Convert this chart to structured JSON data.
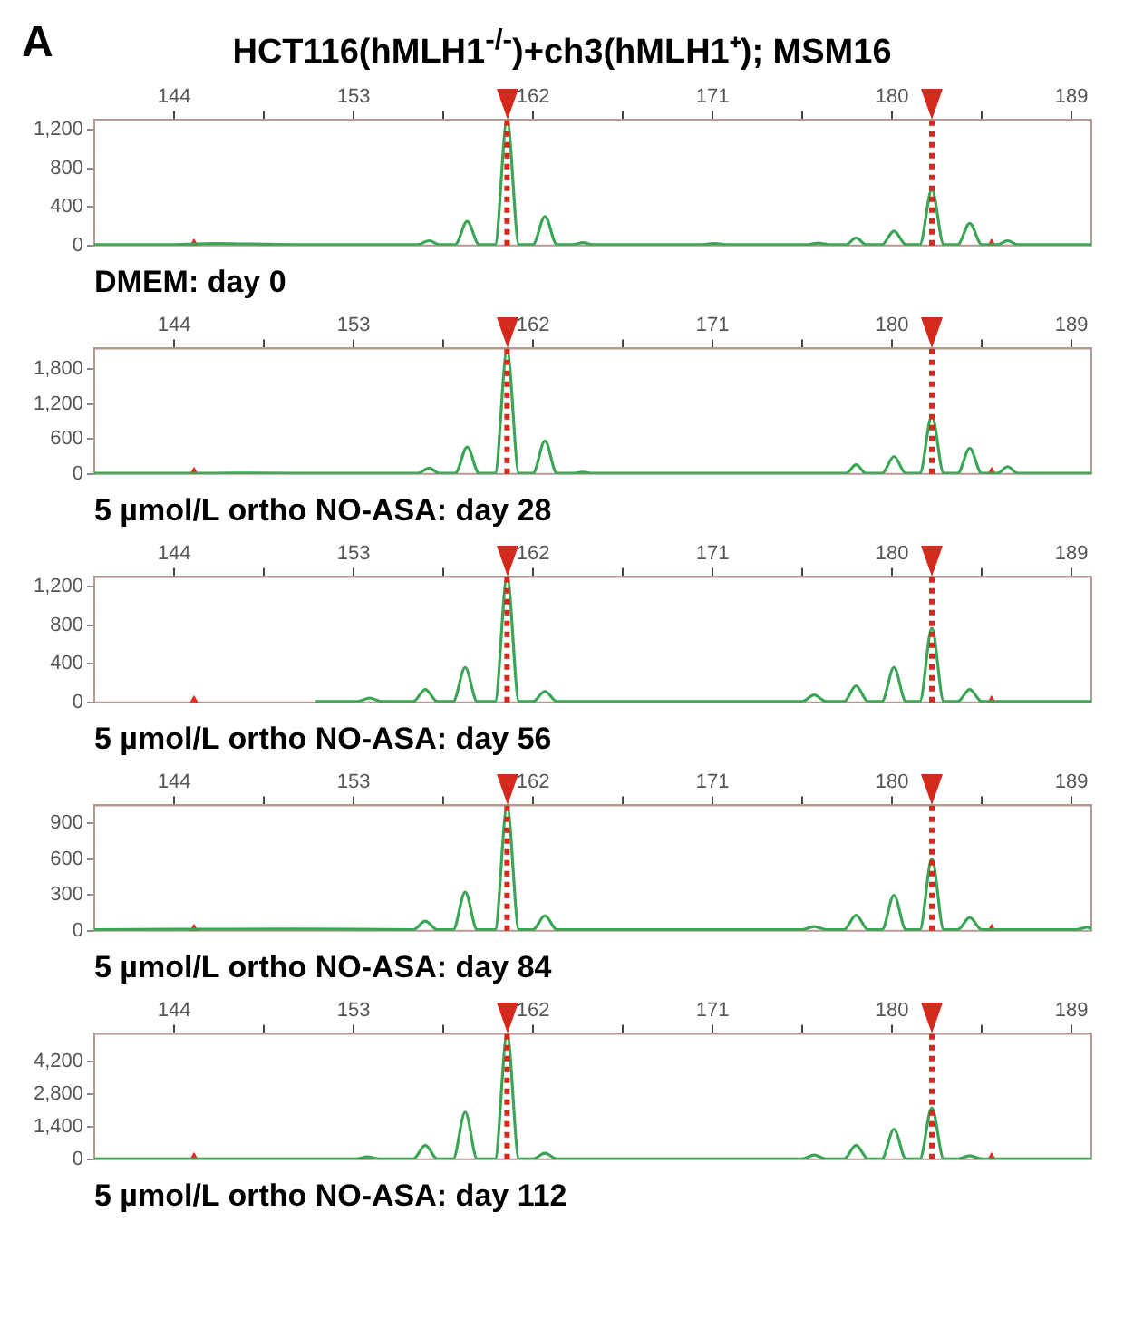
{
  "chart_data": [
    {
      "type": "line",
      "title": "HCT116(hMLH1$^{-/-}$)+ch3(hMLH1⁺); MSM16",
      "subtitle": "DMEM: day 0",
      "annotations": [
        "A"
      ],
      "xlim": [
        140,
        190
      ],
      "xticks": [
        144,
        {
          "value": 148.5,
          "label": null
        },
        153,
        {
          "value": 157.5,
          "label": null
        },
        162,
        {
          "value": 166.5,
          "label": null
        },
        171,
        {
          "value": 175.5,
          "label": null
        },
        180,
        {
          "value": 184.5,
          "label": null
        },
        189
      ],
      "ylim": [
        0,
        1300
      ],
      "yticks": [
        0,
        400,
        800,
        {
          "value": 1200,
          "label": "1,200"
        }
      ],
      "legend": false,
      "ref_lines": [
        {
          "axis": "x",
          "value": 160.7,
          "color": "#d42a1e",
          "line_style": "dotted"
        },
        {
          "axis": "x",
          "value": 182,
          "color": "#d42a1e",
          "line_style": "dotted"
        }
      ],
      "series": [
        {
          "type": "line",
          "color": "#3aa655",
          "marker": "none",
          "x": [
            140,
            144,
            146,
            148,
            150,
            154,
            156.2,
            156.8,
            157.3,
            158.1,
            158.7,
            159.3,
            160.1,
            160.7,
            161.3,
            162.0,
            162.6,
            163.2,
            164.0,
            164.5,
            165.0,
            170.5,
            171.1,
            171.7,
            175.8,
            176.3,
            176.8,
            177.7,
            178.2,
            178.7,
            179.5,
            180.1,
            180.7,
            181.4,
            182.0,
            182.6,
            183.3,
            183.9,
            184.5,
            185.3,
            185.8,
            186.3,
            190
          ],
          "values": [
            10,
            10,
            20,
            15,
            10,
            10,
            10,
            50,
            10,
            10,
            250,
            10,
            10,
            1300,
            10,
            10,
            300,
            10,
            10,
            30,
            10,
            10,
            20,
            10,
            10,
            25,
            10,
            10,
            80,
            10,
            10,
            150,
            10,
            10,
            580,
            10,
            10,
            230,
            10,
            10,
            50,
            10,
            10
          ]
        },
        {
          "type": "scatter",
          "color": "#e8291c",
          "marker": "triangle",
          "x": [
            145,
            185
          ],
          "values": [
            0,
            0
          ]
        }
      ]
    },
    {
      "type": "line",
      "subtitle": "5 µmol/L ortho NO-ASA: day 28",
      "xlim": [
        140,
        190
      ],
      "xticks": [
        144,
        {
          "value": 148.5,
          "label": null
        },
        153,
        {
          "value": 157.5,
          "label": null
        },
        162,
        {
          "value": 166.5,
          "label": null
        },
        171,
        {
          "value": 175.5,
          "label": null
        },
        180,
        {
          "value": 184.5,
          "label": null
        },
        189
      ],
      "ylim": [
        0,
        2150
      ],
      "yticks": [
        0,
        600,
        {
          "value": 1200,
          "label": "1,200"
        },
        {
          "value": 1800,
          "label": "1,800"
        }
      ],
      "legend": false,
      "ref_lines": [
        {
          "axis": "x",
          "value": 160.7,
          "color": "#d42a1e",
          "line_style": "dotted"
        },
        {
          "axis": "x",
          "value": 182,
          "color": "#d42a1e",
          "line_style": "dotted"
        }
      ],
      "series": [
        {
          "type": "line",
          "color": "#3aa655",
          "marker": "none",
          "x": [
            140,
            144,
            148,
            152,
            156.2,
            156.8,
            157.3,
            158.1,
            158.7,
            159.3,
            160.1,
            160.7,
            161.3,
            162.0,
            162.6,
            163.2,
            164.0,
            164.5,
            165.0,
            177.7,
            178.2,
            178.7,
            179.5,
            180.1,
            180.7,
            181.4,
            182.0,
            182.6,
            183.3,
            183.9,
            184.5,
            185.3,
            185.8,
            186.3,
            190
          ],
          "values": [
            10,
            10,
            15,
            10,
            10,
            100,
            10,
            10,
            460,
            10,
            10,
            2120,
            10,
            10,
            565,
            10,
            10,
            30,
            10,
            10,
            157,
            10,
            10,
            300,
            10,
            10,
            995,
            10,
            10,
            440,
            10,
            10,
            125,
            10,
            10
          ]
        },
        {
          "type": "scatter",
          "color": "#e8291c",
          "marker": "triangle",
          "x": [
            145,
            185
          ],
          "values": [
            0,
            0
          ]
        }
      ]
    },
    {
      "type": "line",
      "subtitle": "5 µmol/L ortho NO-ASA: day 56",
      "xlim": [
        140,
        190
      ],
      "xticks": [
        144,
        {
          "value": 148.5,
          "label": null
        },
        153,
        {
          "value": 157.5,
          "label": null
        },
        162,
        {
          "value": 166.5,
          "label": null
        },
        171,
        {
          "value": 175.5,
          "label": null
        },
        180,
        {
          "value": 184.5,
          "label": null
        },
        189
      ],
      "ylim": [
        0,
        1300
      ],
      "yticks": [
        0,
        400,
        800,
        {
          "value": 1200,
          "label": "1,200"
        }
      ],
      "legend": false,
      "ref_lines": [
        {
          "axis": "x",
          "value": 160.7,
          "color": "#d42a1e",
          "line_style": "dotted"
        },
        {
          "axis": "x",
          "value": 182,
          "color": "#d42a1e",
          "line_style": "dotted"
        }
      ],
      "series": [
        {
          "type": "line",
          "color": "#3aa655",
          "marker": "none",
          "x": [
            151.1,
            153.2,
            153.8,
            154.4,
            156.0,
            156.6,
            157.2,
            158.0,
            158.6,
            159.2,
            160.1,
            160.7,
            161.3,
            162.0,
            162.6,
            163.2,
            175.5,
            176.1,
            176.7,
            177.6,
            178.2,
            178.8,
            179.5,
            180.1,
            180.7,
            181.4,
            182.0,
            182.6,
            183.3,
            183.9,
            184.5,
            190
          ],
          "values": [
            10,
            10,
            45,
            10,
            10,
            133,
            10,
            10,
            362,
            10,
            10,
            1300,
            10,
            10,
            114,
            10,
            10,
            76,
            10,
            10,
            171,
            10,
            10,
            362,
            10,
            10,
            768,
            10,
            10,
            133,
            10,
            10
          ]
        },
        {
          "type": "scatter",
          "color": "#e8291c",
          "marker": "triangle",
          "x": [
            145,
            185
          ],
          "values": [
            0,
            0
          ]
        }
      ]
    },
    {
      "type": "line",
      "subtitle": "5 µmol/L ortho NO-ASA: day 84",
      "xlim": [
        140,
        190
      ],
      "xticks": [
        144,
        {
          "value": 148.5,
          "label": null
        },
        153,
        {
          "value": 157.5,
          "label": null
        },
        162,
        {
          "value": 166.5,
          "label": null
        },
        171,
        {
          "value": 175.5,
          "label": null
        },
        180,
        {
          "value": 184.5,
          "label": null
        },
        189
      ],
      "ylim": [
        0,
        1050
      ],
      "yticks": [
        0,
        300,
        600,
        900
      ],
      "legend": false,
      "ref_lines": [
        {
          "axis": "x",
          "value": 160.7,
          "color": "#d42a1e",
          "line_style": "dotted"
        },
        {
          "axis": "x",
          "value": 182,
          "color": "#d42a1e",
          "line_style": "dotted"
        }
      ],
      "series": [
        {
          "type": "line",
          "color": "#3aa655",
          "marker": "none",
          "x": [
            140,
            150,
            156.0,
            156.6,
            157.2,
            158.0,
            158.6,
            159.2,
            160.1,
            160.7,
            161.3,
            162.0,
            162.6,
            163.2,
            175.5,
            176.1,
            176.7,
            177.6,
            178.2,
            178.8,
            179.5,
            180.1,
            180.7,
            181.4,
            182.0,
            182.6,
            183.3,
            183.9,
            184.5,
            189.2,
            189.8,
            190
          ],
          "values": [
            10,
            15,
            10,
            81,
            10,
            10,
            324,
            10,
            10,
            1040,
            10,
            10,
            126,
            10,
            10,
            35,
            10,
            10,
            131,
            10,
            10,
            298,
            10,
            10,
            602,
            10,
            10,
            111,
            10,
            10,
            30,
            15
          ]
        },
        {
          "type": "scatter",
          "color": "#e8291c",
          "marker": "triangle",
          "x": [
            145,
            185
          ],
          "values": [
            0,
            0
          ]
        }
      ]
    },
    {
      "type": "line",
      "subtitle": "5 µmol/L ortho NO-ASA: day 112",
      "xlim": [
        140,
        190
      ],
      "xticks": [
        144,
        {
          "value": 148.5,
          "label": null
        },
        153,
        {
          "value": 157.5,
          "label": null
        },
        162,
        {
          "value": 166.5,
          "label": null
        },
        171,
        {
          "value": 175.5,
          "label": null
        },
        180,
        {
          "value": 184.5,
          "label": null
        },
        189
      ],
      "ylim": [
        0,
        5400
      ],
      "yticks": [
        0,
        {
          "value": 1400,
          "label": "1,400"
        },
        {
          "value": 2800,
          "label": "2,800"
        },
        {
          "value": 4200,
          "label": "4,200"
        }
      ],
      "legend": false,
      "ref_lines": [
        {
          "axis": "x",
          "value": 160.7,
          "color": "#d42a1e",
          "line_style": "dotted"
        },
        {
          "axis": "x",
          "value": 182,
          "color": "#d42a1e",
          "line_style": "dotted"
        }
      ],
      "series": [
        {
          "type": "line",
          "color": "#3aa655",
          "marker": "none",
          "x": [
            140,
            153.1,
            153.7,
            154.3,
            156.0,
            156.6,
            157.2,
            158.0,
            158.6,
            159.2,
            160.1,
            160.7,
            161.3,
            162.0,
            162.6,
            163.2,
            175.5,
            176.1,
            176.7,
            177.6,
            178.2,
            178.8,
            179.5,
            180.1,
            180.7,
            181.4,
            182.0,
            182.6,
            183.3,
            183.9,
            184.5,
            190
          ],
          "values": [
            20,
            20,
            105,
            20,
            20,
            600,
            20,
            20,
            2030,
            20,
            20,
            5370,
            20,
            20,
            260,
            20,
            20,
            180,
            20,
            20,
            600,
            20,
            20,
            1300,
            20,
            20,
            2215,
            20,
            20,
            155,
            20,
            20
          ]
        },
        {
          "type": "scatter",
          "color": "#e8291c",
          "marker": "triangle",
          "x": [
            145,
            185
          ],
          "values": [
            0,
            0
          ]
        }
      ]
    }
  ]
}
